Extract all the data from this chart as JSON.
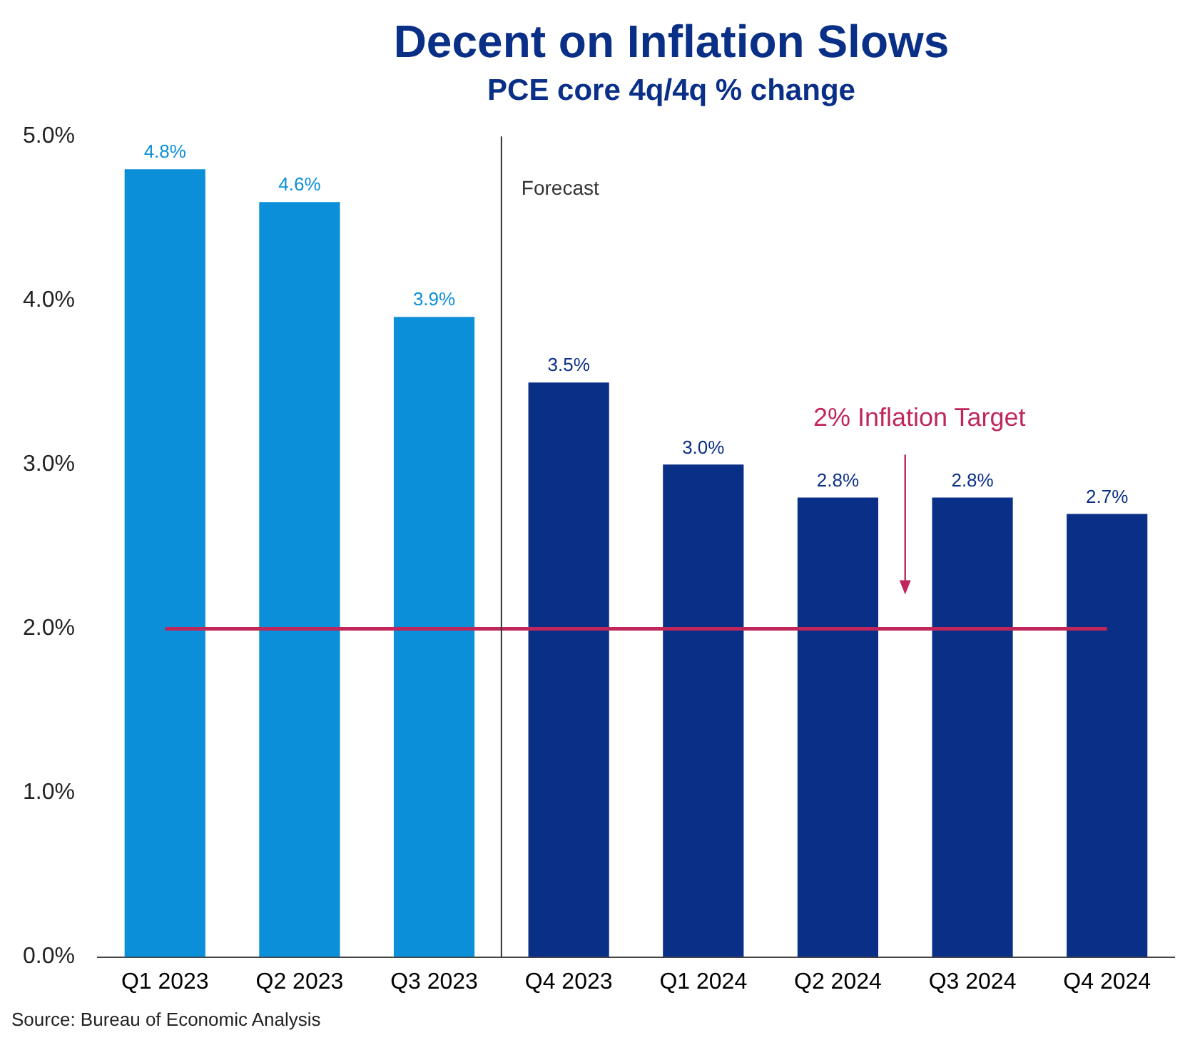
{
  "chart_data": {
    "type": "bar",
    "title": "Decent on Inflation Slows",
    "subtitle": "PCE core 4q/4q % change",
    "categories": [
      "Q1 2023",
      "Q2 2023",
      "Q3 2023",
      "Q4 2023",
      "Q1 2024",
      "Q2 2024",
      "Q3 2024",
      "Q4 2024"
    ],
    "values": [
      4.8,
      4.6,
      3.9,
      3.5,
      3.0,
      2.8,
      2.8,
      2.7
    ],
    "value_labels": [
      "4.8%",
      "4.6%",
      "3.9%",
      "3.5%",
      "3.0%",
      "2.8%",
      "2.8%",
      "2.7%"
    ],
    "colors": [
      "#0b8fd9",
      "#0b8fd9",
      "#0b8fd9",
      "#0a2f86",
      "#0a2f86",
      "#0a2f86",
      "#0a2f86",
      "#0a2f86"
    ],
    "ylim": [
      0,
      5
    ],
    "yticks": [
      {
        "value": 0,
        "label": "0.0%"
      },
      {
        "value": 1,
        "label": "1.0%"
      },
      {
        "value": 2,
        "label": "2.0%"
      },
      {
        "value": 3,
        "label": "3.0%"
      },
      {
        "value": 4,
        "label": "4.0%"
      },
      {
        "value": 5,
        "label": "5.0%"
      }
    ],
    "grid": false,
    "legend": false,
    "ref_lines": [
      {
        "axis": "y",
        "value": 2,
        "label": "2% Inflation Target",
        "color": "#c0265a"
      },
      {
        "axis": "x",
        "value": "Q4 2023",
        "label": "Forecast",
        "color": "#333333"
      }
    ],
    "annotations": [
      "Source: Bureau of Economic Analysis"
    ]
  }
}
